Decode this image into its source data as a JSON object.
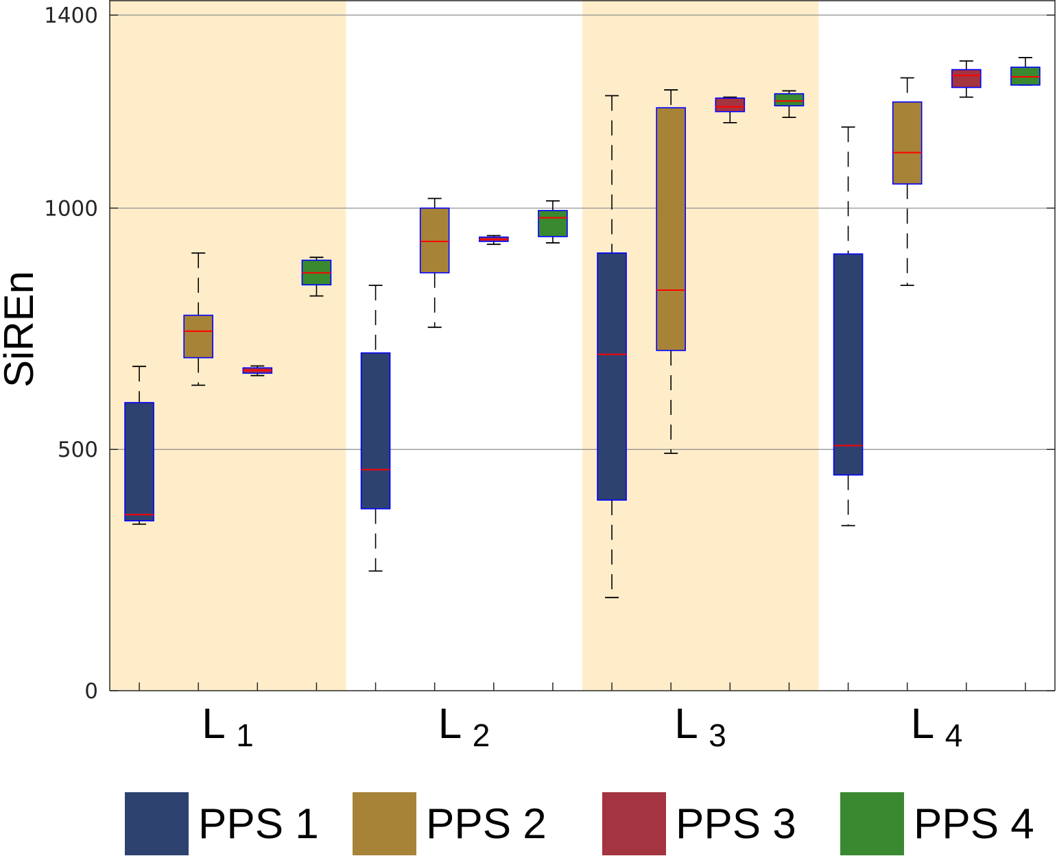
{
  "chart_data": {
    "type": "box",
    "title": "",
    "xlabel": "",
    "ylabel": "SiREn",
    "ylim": [
      0,
      1430
    ],
    "yticks": [
      0,
      500,
      1000,
      1400
    ],
    "grid_y": true,
    "legend_position": "bottom",
    "groups": [
      {
        "letter": "L",
        "sub": "1"
      },
      {
        "letter": "L",
        "sub": "2"
      },
      {
        "letter": "L",
        "sub": "3"
      },
      {
        "letter": "L",
        "sub": "4"
      }
    ],
    "shaded_groups": [
      0,
      2
    ],
    "shade_color": "#FFEDCA",
    "box_outline_color": "#0000FF",
    "median_color": "#FF0000",
    "series": [
      {
        "name": "PPS 1",
        "color": "#2E4270",
        "boxes": [
          {
            "min": 345,
            "q1": 352,
            "median": 365,
            "q3": 597,
            "max": 672
          },
          {
            "min": 248,
            "q1": 377,
            "median": 458,
            "q3": 700,
            "max": 840
          },
          {
            "min": 193,
            "q1": 395,
            "median": 697,
            "q3": 907,
            "max": 1233
          },
          {
            "min": 342,
            "q1": 447,
            "median": 508,
            "q3": 905,
            "max": 1168
          }
        ]
      },
      {
        "name": "PPS 2",
        "color": "#A78338",
        "boxes": [
          {
            "min": 633,
            "q1": 690,
            "median": 745,
            "q3": 778,
            "max": 907
          },
          {
            "min": 753,
            "q1": 866,
            "median": 931,
            "q3": 1000,
            "max": 1020
          },
          {
            "min": 492,
            "q1": 705,
            "median": 830,
            "q3": 1208,
            "max": 1245
          },
          {
            "min": 840,
            "q1": 1050,
            "median": 1115,
            "q3": 1220,
            "max": 1270
          }
        ]
      },
      {
        "name": "PPS 3",
        "color": "#A33440",
        "boxes": [
          {
            "min": 653,
            "q1": 658,
            "median": 664,
            "q3": 669,
            "max": 673
          },
          {
            "min": 925,
            "q1": 931,
            "median": 935,
            "q3": 940,
            "max": 943
          },
          {
            "min": 1177,
            "q1": 1200,
            "median": 1210,
            "q3": 1228,
            "max": 1230
          },
          {
            "min": 1230,
            "q1": 1250,
            "median": 1275,
            "q3": 1287,
            "max": 1305
          }
        ]
      },
      {
        "name": "PPS 4",
        "color": "#3A8930",
        "boxes": [
          {
            "min": 818,
            "q1": 841,
            "median": 866,
            "q3": 892,
            "max": 898
          },
          {
            "min": 928,
            "q1": 941,
            "median": 980,
            "q3": 995,
            "max": 1015
          },
          {
            "min": 1188,
            "q1": 1212,
            "median": 1222,
            "q3": 1237,
            "max": 1243
          },
          {
            "min": 1255,
            "q1": 1255,
            "median": 1272,
            "q3": 1292,
            "max": 1312
          }
        ]
      }
    ]
  }
}
